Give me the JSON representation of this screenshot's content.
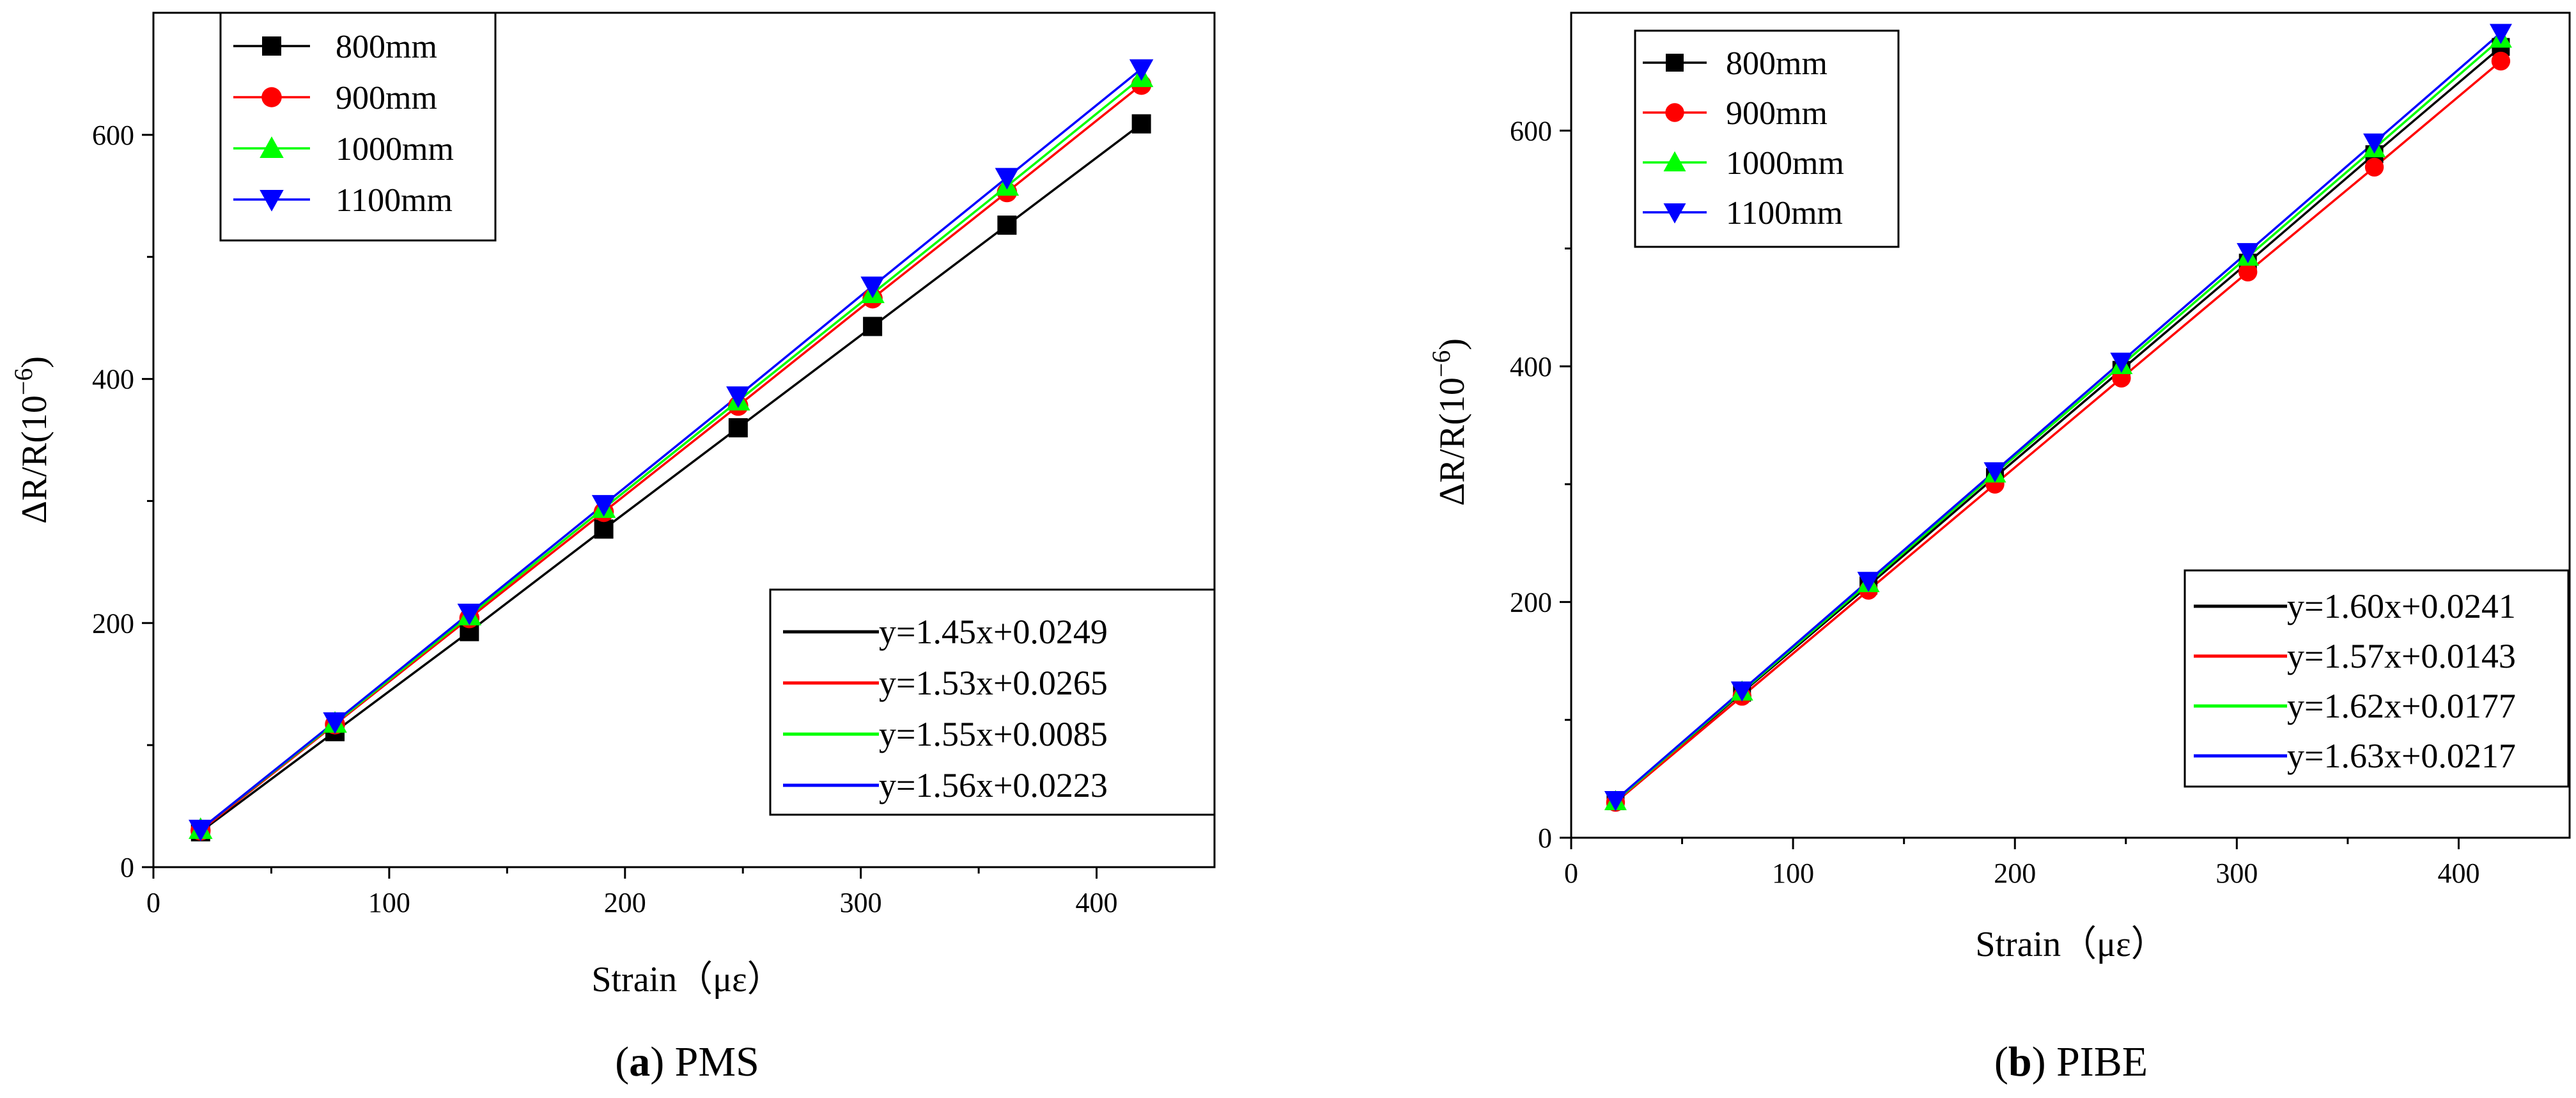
{
  "colors": {
    "800mm": "#000000",
    "900mm": "#ff0000",
    "1000mm": "#00ff00",
    "1100mm": "#0000ff"
  },
  "chart_data": [
    {
      "id": "pms",
      "type": "line",
      "caption_letter": "a",
      "caption_text": "PMS",
      "xlabel": "Strain（με）",
      "ylabel": "ΔR/R(10",
      "ylabel_sup": "−6",
      "ylabel_close": ")",
      "xlim": [
        0,
        450
      ],
      "ylim": [
        0,
        700
      ],
      "xticks": [
        0,
        100,
        200,
        300,
        400
      ],
      "yticks": [
        0,
        200,
        400,
        600
      ],
      "x": [
        20,
        77,
        134,
        191,
        248,
        305,
        362,
        419
      ],
      "series": [
        {
          "name": "800mm",
          "color": "#000000",
          "marker": "square",
          "values": [
            29,
            111,
            193,
            277,
            360,
            443,
            526,
            609
          ]
        },
        {
          "name": "900mm",
          "color": "#ff0000",
          "marker": "circle",
          "values": [
            30,
            117,
            204,
            291,
            378,
            466,
            553,
            641
          ]
        },
        {
          "name": "1000mm",
          "color": "#00ff00",
          "marker": "triangle-up",
          "values": [
            31,
            118,
            206,
            294,
            382,
            470,
            558,
            647
          ]
        },
        {
          "name": "1100mm",
          "color": "#0000ff",
          "marker": "triangle-down",
          "values": [
            31,
            119,
            208,
            297,
            386,
            476,
            565,
            654
          ]
        }
      ],
      "fit_legend": [
        {
          "text": "y=1.45x+0.0249",
          "color": "#000000"
        },
        {
          "text": "y=1.53x+0.0265",
          "color": "#ff0000"
        },
        {
          "text": "y=1.55x+0.0085",
          "color": "#00ff00"
        },
        {
          "text": "y=1.56x+0.0223",
          "color": "#0000ff"
        }
      ]
    },
    {
      "id": "pibe",
      "type": "line",
      "caption_letter": "b",
      "caption_text": "PIBE",
      "xlabel": "Strain（με）",
      "ylabel": "ΔR/R(10",
      "ylabel_sup": "−6",
      "ylabel_close": ")",
      "xlim": [
        0,
        450
      ],
      "ylim": [
        0,
        700
      ],
      "xticks": [
        0,
        100,
        200,
        300,
        400
      ],
      "yticks": [
        0,
        200,
        400,
        600
      ],
      "x": [
        20,
        77,
        134,
        191,
        248,
        305,
        362,
        419
      ],
      "series": [
        {
          "name": "800mm",
          "color": "#000000",
          "marker": "square",
          "values": [
            31,
            123,
            214,
            306,
            397,
            488,
            580,
            671
          ]
        },
        {
          "name": "900mm",
          "color": "#ff0000",
          "marker": "circle",
          "values": [
            30,
            120,
            210,
            300,
            390,
            480,
            569,
            659
          ]
        },
        {
          "name": "1000mm",
          "color": "#00ff00",
          "marker": "triangle-up",
          "values": [
            31,
            124,
            216,
            309,
            401,
            493,
            585,
            678
          ]
        },
        {
          "name": "1100mm",
          "color": "#0000ff",
          "marker": "triangle-down",
          "values": [
            32,
            125,
            218,
            311,
            404,
            497,
            590,
            683
          ]
        }
      ],
      "fit_legend": [
        {
          "text": "y=1.60x+0.0241",
          "color": "#000000"
        },
        {
          "text": "y=1.57x+0.0143",
          "color": "#ff0000"
        },
        {
          "text": "y=1.62x+0.0177",
          "color": "#00ff00"
        },
        {
          "text": "y=1.63x+0.0217",
          "color": "#0000ff"
        }
      ]
    }
  ]
}
